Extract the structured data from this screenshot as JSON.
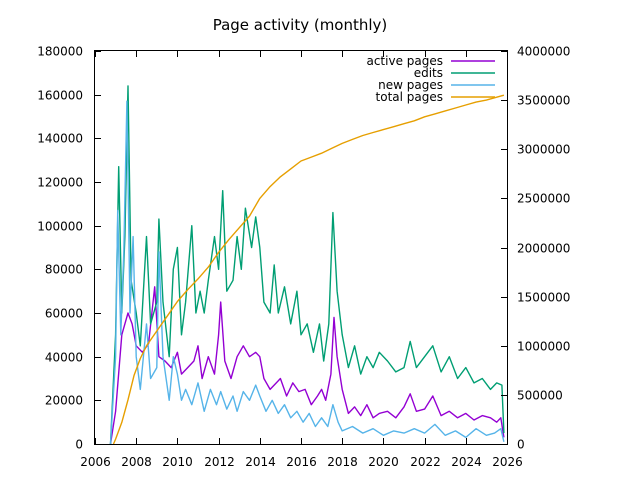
{
  "chart_data": {
    "type": "line",
    "title": "Page activity (monthly)",
    "xlabel": "",
    "ylabel": "",
    "xlim": [
      2006,
      2026
    ],
    "ylim": [
      0,
      180000
    ],
    "y2lim": [
      0,
      4000000
    ],
    "x_ticks": [
      2006,
      2008,
      2010,
      2012,
      2014,
      2016,
      2018,
      2020,
      2022,
      2024,
      2026
    ],
    "y_ticks": [
      0,
      20000,
      40000,
      60000,
      80000,
      100000,
      120000,
      140000,
      160000,
      180000
    ],
    "y2_ticks": [
      0,
      500000,
      1000000,
      1500000,
      2000000,
      2500000,
      3000000,
      3500000,
      4000000
    ],
    "grid": false,
    "legend_position": "top-right",
    "series": [
      {
        "name": "active pages",
        "axis": "y1",
        "color": "#9400d3",
        "points": [
          [
            2006.75,
            0
          ],
          [
            2007.0,
            15000
          ],
          [
            2007.3,
            50000
          ],
          [
            2007.6,
            60000
          ],
          [
            2007.8,
            55000
          ],
          [
            2008.0,
            45000
          ],
          [
            2008.3,
            42000
          ],
          [
            2008.6,
            46000
          ],
          [
            2008.9,
            72000
          ],
          [
            2009.1,
            40000
          ],
          [
            2009.4,
            38000
          ],
          [
            2009.7,
            35000
          ],
          [
            2010.0,
            42000
          ],
          [
            2010.2,
            32000
          ],
          [
            2010.5,
            35000
          ],
          [
            2010.8,
            38000
          ],
          [
            2011.0,
            45000
          ],
          [
            2011.2,
            30000
          ],
          [
            2011.5,
            40000
          ],
          [
            2011.8,
            32000
          ],
          [
            2012.0,
            50000
          ],
          [
            2012.1,
            65000
          ],
          [
            2012.3,
            38000
          ],
          [
            2012.6,
            30000
          ],
          [
            2012.9,
            40000
          ],
          [
            2013.2,
            45000
          ],
          [
            2013.5,
            40000
          ],
          [
            2013.8,
            42000
          ],
          [
            2014.0,
            40000
          ],
          [
            2014.2,
            30000
          ],
          [
            2014.5,
            25000
          ],
          [
            2014.8,
            28000
          ],
          [
            2015.0,
            30000
          ],
          [
            2015.3,
            22000
          ],
          [
            2015.6,
            28000
          ],
          [
            2015.9,
            24000
          ],
          [
            2016.2,
            25000
          ],
          [
            2016.5,
            18000
          ],
          [
            2016.8,
            22000
          ],
          [
            2017.0,
            25000
          ],
          [
            2017.2,
            20000
          ],
          [
            2017.45,
            32000
          ],
          [
            2017.6,
            58000
          ],
          [
            2017.75,
            40000
          ],
          [
            2018.0,
            25000
          ],
          [
            2018.3,
            14000
          ],
          [
            2018.6,
            17000
          ],
          [
            2018.9,
            13000
          ],
          [
            2019.2,
            18000
          ],
          [
            2019.5,
            12000
          ],
          [
            2019.8,
            14000
          ],
          [
            2020.2,
            15000
          ],
          [
            2020.6,
            12000
          ],
          [
            2021.0,
            17000
          ],
          [
            2021.3,
            23000
          ],
          [
            2021.6,
            15000
          ],
          [
            2022.0,
            16000
          ],
          [
            2022.4,
            22000
          ],
          [
            2022.8,
            13000
          ],
          [
            2023.2,
            15000
          ],
          [
            2023.6,
            12000
          ],
          [
            2024.0,
            14000
          ],
          [
            2024.4,
            11000
          ],
          [
            2024.8,
            13000
          ],
          [
            2025.2,
            12000
          ],
          [
            2025.5,
            10000
          ],
          [
            2025.7,
            12000
          ],
          [
            2025.85,
            3000
          ]
        ]
      },
      {
        "name": "edits",
        "axis": "y1",
        "color": "#009e73",
        "points": [
          [
            2006.75,
            0
          ],
          [
            2007.0,
            50000
          ],
          [
            2007.15,
            127000
          ],
          [
            2007.3,
            60000
          ],
          [
            2007.45,
            95000
          ],
          [
            2007.6,
            164000
          ],
          [
            2007.75,
            75000
          ],
          [
            2008.0,
            60000
          ],
          [
            2008.2,
            45000
          ],
          [
            2008.5,
            95000
          ],
          [
            2008.7,
            55000
          ],
          [
            2009.0,
            65000
          ],
          [
            2009.1,
            103000
          ],
          [
            2009.3,
            65000
          ],
          [
            2009.6,
            40000
          ],
          [
            2009.8,
            80000
          ],
          [
            2010.0,
            90000
          ],
          [
            2010.2,
            50000
          ],
          [
            2010.4,
            65000
          ],
          [
            2010.7,
            100000
          ],
          [
            2010.9,
            60000
          ],
          [
            2011.1,
            70000
          ],
          [
            2011.3,
            60000
          ],
          [
            2011.5,
            75000
          ],
          [
            2011.8,
            95000
          ],
          [
            2012.0,
            80000
          ],
          [
            2012.2,
            116000
          ],
          [
            2012.4,
            70000
          ],
          [
            2012.7,
            75000
          ],
          [
            2012.9,
            95000
          ],
          [
            2013.1,
            80000
          ],
          [
            2013.3,
            108000
          ],
          [
            2013.6,
            90000
          ],
          [
            2013.8,
            104000
          ],
          [
            2014.0,
            90000
          ],
          [
            2014.2,
            65000
          ],
          [
            2014.5,
            60000
          ],
          [
            2014.7,
            82000
          ],
          [
            2014.9,
            60000
          ],
          [
            2015.2,
            72000
          ],
          [
            2015.5,
            55000
          ],
          [
            2015.8,
            70000
          ],
          [
            2016.0,
            50000
          ],
          [
            2016.3,
            55000
          ],
          [
            2016.6,
            42000
          ],
          [
            2016.9,
            55000
          ],
          [
            2017.1,
            38000
          ],
          [
            2017.35,
            55000
          ],
          [
            2017.55,
            106000
          ],
          [
            2017.75,
            70000
          ],
          [
            2018.0,
            50000
          ],
          [
            2018.3,
            35000
          ],
          [
            2018.6,
            45000
          ],
          [
            2018.9,
            32000
          ],
          [
            2019.2,
            40000
          ],
          [
            2019.5,
            35000
          ],
          [
            2019.8,
            42000
          ],
          [
            2020.2,
            38000
          ],
          [
            2020.6,
            33000
          ],
          [
            2021.0,
            35000
          ],
          [
            2021.3,
            47000
          ],
          [
            2021.6,
            35000
          ],
          [
            2022.0,
            40000
          ],
          [
            2022.4,
            45000
          ],
          [
            2022.8,
            33000
          ],
          [
            2023.2,
            40000
          ],
          [
            2023.6,
            30000
          ],
          [
            2024.0,
            35000
          ],
          [
            2024.4,
            28000
          ],
          [
            2024.8,
            30000
          ],
          [
            2025.2,
            25000
          ],
          [
            2025.5,
            28000
          ],
          [
            2025.75,
            27000
          ],
          [
            2025.85,
            5000
          ]
        ]
      },
      {
        "name": "new pages",
        "axis": "y1",
        "color": "#56b4e9",
        "points": [
          [
            2006.75,
            0
          ],
          [
            2007.0,
            40000
          ],
          [
            2007.1,
            107000
          ],
          [
            2007.25,
            50000
          ],
          [
            2007.4,
            88000
          ],
          [
            2007.55,
            157000
          ],
          [
            2007.7,
            60000
          ],
          [
            2007.85,
            95000
          ],
          [
            2008.0,
            40000
          ],
          [
            2008.2,
            25000
          ],
          [
            2008.5,
            55000
          ],
          [
            2008.7,
            30000
          ],
          [
            2009.0,
            35000
          ],
          [
            2009.1,
            88000
          ],
          [
            2009.3,
            40000
          ],
          [
            2009.6,
            20000
          ],
          [
            2009.8,
            40000
          ],
          [
            2010.0,
            32000
          ],
          [
            2010.2,
            20000
          ],
          [
            2010.4,
            25000
          ],
          [
            2010.7,
            18000
          ],
          [
            2011.0,
            28000
          ],
          [
            2011.3,
            15000
          ],
          [
            2011.6,
            25000
          ],
          [
            2011.9,
            18000
          ],
          [
            2012.1,
            24000
          ],
          [
            2012.4,
            16000
          ],
          [
            2012.7,
            22000
          ],
          [
            2012.9,
            15000
          ],
          [
            2013.2,
            24000
          ],
          [
            2013.5,
            20000
          ],
          [
            2013.8,
            27000
          ],
          [
            2014.0,
            22000
          ],
          [
            2014.3,
            15000
          ],
          [
            2014.6,
            20000
          ],
          [
            2014.9,
            14000
          ],
          [
            2015.2,
            18000
          ],
          [
            2015.5,
            12000
          ],
          [
            2015.8,
            15000
          ],
          [
            2016.1,
            10000
          ],
          [
            2016.4,
            14000
          ],
          [
            2016.7,
            8000
          ],
          [
            2017.0,
            12000
          ],
          [
            2017.3,
            8000
          ],
          [
            2017.55,
            18000
          ],
          [
            2017.8,
            10000
          ],
          [
            2018.0,
            6000
          ],
          [
            2018.5,
            8000
          ],
          [
            2019.0,
            5000
          ],
          [
            2019.5,
            7000
          ],
          [
            2020.0,
            4000
          ],
          [
            2020.5,
            6000
          ],
          [
            2021.0,
            5000
          ],
          [
            2021.5,
            7000
          ],
          [
            2022.0,
            5000
          ],
          [
            2022.5,
            9000
          ],
          [
            2023.0,
            4000
          ],
          [
            2023.5,
            6000
          ],
          [
            2024.0,
            3000
          ],
          [
            2024.5,
            7000
          ],
          [
            2025.0,
            4000
          ],
          [
            2025.4,
            5000
          ],
          [
            2025.7,
            7000
          ],
          [
            2025.85,
            1000
          ]
        ]
      },
      {
        "name": "total pages",
        "axis": "y2",
        "color": "#e69f00",
        "points": [
          [
            2006.9,
            0
          ],
          [
            2007.0,
            50000
          ],
          [
            2007.3,
            220000
          ],
          [
            2007.6,
            450000
          ],
          [
            2007.9,
            700000
          ],
          [
            2008.2,
            870000
          ],
          [
            2008.5,
            1000000
          ],
          [
            2009.0,
            1150000
          ],
          [
            2009.5,
            1300000
          ],
          [
            2010.0,
            1450000
          ],
          [
            2010.5,
            1570000
          ],
          [
            2011.0,
            1680000
          ],
          [
            2011.5,
            1800000
          ],
          [
            2012.0,
            1950000
          ],
          [
            2012.5,
            2080000
          ],
          [
            2013.0,
            2200000
          ],
          [
            2013.5,
            2320000
          ],
          [
            2014.0,
            2500000
          ],
          [
            2014.5,
            2620000
          ],
          [
            2015.0,
            2720000
          ],
          [
            2015.5,
            2800000
          ],
          [
            2016.0,
            2880000
          ],
          [
            2016.5,
            2920000
          ],
          [
            2017.0,
            2960000
          ],
          [
            2017.5,
            3010000
          ],
          [
            2018.0,
            3060000
          ],
          [
            2018.5,
            3100000
          ],
          [
            2019.0,
            3140000
          ],
          [
            2019.5,
            3170000
          ],
          [
            2020.0,
            3200000
          ],
          [
            2020.5,
            3230000
          ],
          [
            2021.0,
            3260000
          ],
          [
            2021.5,
            3290000
          ],
          [
            2022.0,
            3330000
          ],
          [
            2022.5,
            3360000
          ],
          [
            2023.0,
            3390000
          ],
          [
            2023.5,
            3420000
          ],
          [
            2024.0,
            3450000
          ],
          [
            2024.5,
            3480000
          ],
          [
            2025.0,
            3500000
          ],
          [
            2025.5,
            3530000
          ],
          [
            2025.85,
            3550000
          ]
        ]
      }
    ]
  }
}
